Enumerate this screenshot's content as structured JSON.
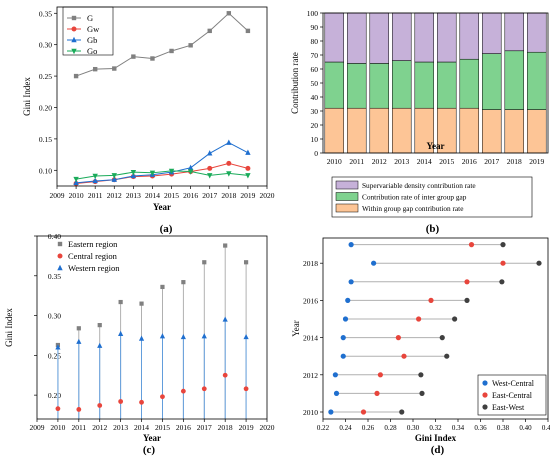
{
  "colors": {
    "gray": "#808080",
    "red": "#e8453c",
    "blue": "#1f6fcf",
    "green": "#1aab5a",
    "dark": "#404040",
    "within": "#fdc596",
    "inter": "#7fd28f",
    "density": "#c6b1d9"
  },
  "chart_data": [
    {
      "panel": "(a)",
      "type": "line",
      "xlabel": "Year",
      "ylabel": "Gini Index",
      "xlim": [
        2009,
        2020
      ],
      "ylim": [
        0.075,
        0.36
      ],
      "xticks": [
        "2009",
        "2010",
        "2011",
        "2012",
        "2013",
        "2014",
        "2015",
        "2016",
        "2017",
        "2018",
        "2019",
        "2020"
      ],
      "yticks": [
        "0.10",
        "0.15",
        "0.20",
        "0.25",
        "0.30",
        "0.35"
      ],
      "x": [
        2010,
        2011,
        2012,
        2013,
        2014,
        2015,
        2016,
        2017,
        2018,
        2019
      ],
      "series": [
        {
          "name": "G",
          "marker": "square",
          "color": "#808080",
          "values": [
            0.25,
            0.261,
            0.262,
            0.281,
            0.278,
            0.29,
            0.299,
            0.322,
            0.35,
            0.322
          ]
        },
        {
          "name": "Gw",
          "marker": "circle",
          "color": "#e8453c",
          "values": [
            0.079,
            0.082,
            0.085,
            0.09,
            0.091,
            0.094,
            0.098,
            0.103,
            0.111,
            0.103
          ]
        },
        {
          "name": "Gb",
          "marker": "triangle",
          "color": "#1f6fcf",
          "values": [
            0.08,
            0.083,
            0.085,
            0.091,
            0.093,
            0.097,
            0.104,
            0.127,
            0.144,
            0.128
          ]
        },
        {
          "name": "Go",
          "marker": "tri-down",
          "color": "#1aab5a",
          "values": [
            0.086,
            0.091,
            0.092,
            0.097,
            0.096,
            0.099,
            0.098,
            0.092,
            0.095,
            0.092
          ]
        }
      ],
      "legend": "top-left"
    },
    {
      "panel": "(b)",
      "type": "bar",
      "stacked": true,
      "xlabel": "Year",
      "ylabel": "Contribution rate",
      "ylim": [
        0,
        100
      ],
      "yticks": [
        "0",
        "10",
        "20",
        "30",
        "40",
        "50",
        "60",
        "70",
        "80",
        "90",
        "100"
      ],
      "categories": [
        "2010",
        "2011",
        "2012",
        "2013",
        "2014",
        "2015",
        "2016",
        "2017",
        "2018",
        "2019"
      ],
      "series": [
        {
          "name": "Within group gap contribution rate",
          "color": "#fdc596",
          "values": [
            32,
            32,
            32,
            32,
            32,
            32,
            32,
            31,
            31,
            31
          ]
        },
        {
          "name": "Contribution rate of inter group gap",
          "color": "#7fd28f",
          "values": [
            33,
            32,
            32,
            34,
            33,
            33,
            35,
            40,
            42,
            41
          ]
        },
        {
          "name": "Supervariable density contribution rate",
          "color": "#c6b1d9",
          "values": [
            35,
            36,
            36,
            34,
            35,
            35,
            33,
            29,
            27,
            28
          ]
        }
      ],
      "legend_order": [
        2,
        1,
        0
      ],
      "legend": "bottom"
    },
    {
      "panel": "(c)",
      "type": "scatter",
      "xlabel": "Year",
      "ylabel": "Gini Index",
      "xlim": [
        2009,
        2020
      ],
      "ylim": [
        0.17,
        0.4
      ],
      "xticks": [
        "2009",
        "2010",
        "2011",
        "2012",
        "2013",
        "2014",
        "2015",
        "2016",
        "2017",
        "2018",
        "2019",
        "2020"
      ],
      "yticks": [
        "0.20",
        "0.25",
        "0.30",
        "0.35",
        "0.40"
      ],
      "x": [
        2010,
        2011,
        2012,
        2013,
        2014,
        2015,
        2016,
        2017,
        2018,
        2019
      ],
      "series": [
        {
          "name": "Eastern region",
          "marker": "square",
          "color": "#808080",
          "values": [
            0.263,
            0.284,
            0.288,
            0.317,
            0.315,
            0.336,
            0.342,
            0.367,
            0.388,
            0.367
          ]
        },
        {
          "name": "Central region",
          "marker": "circle",
          "color": "#e8453c",
          "values": [
            0.183,
            0.182,
            0.187,
            0.192,
            0.191,
            0.198,
            0.205,
            0.208,
            0.225,
            0.208
          ]
        },
        {
          "name": "Western region",
          "marker": "triangle",
          "color": "#1f6fcf",
          "values": [
            0.26,
            0.267,
            0.262,
            0.277,
            0.271,
            0.274,
            0.273,
            0.274,
            0.295,
            0.273
          ]
        }
      ],
      "legend": "top-left"
    },
    {
      "panel": "(d)",
      "type": "dot-plot",
      "xlabel": "Gini Index",
      "ylabel": "Year",
      "xlim": [
        0.22,
        0.42
      ],
      "xticks": [
        "0.22",
        "0.24",
        "0.26",
        "0.28",
        "0.30",
        "0.32",
        "0.34",
        "0.36",
        "0.38",
        "0.40",
        "0.42"
      ],
      "yticks": [
        "2010",
        "2012",
        "2014",
        "2016",
        "2018"
      ],
      "years": [
        2010,
        2011,
        2012,
        2013,
        2014,
        2015,
        2016,
        2017,
        2018,
        2019
      ],
      "series": [
        {
          "name": "West-Central",
          "color": "#1f6fcf",
          "values": [
            0.227,
            0.232,
            0.231,
            0.238,
            0.238,
            0.24,
            0.242,
            0.245,
            0.265,
            0.245
          ]
        },
        {
          "name": "East-Central",
          "color": "#e8453c",
          "values": [
            0.256,
            0.268,
            0.271,
            0.292,
            0.287,
            0.305,
            0.316,
            0.348,
            0.38,
            0.352
          ]
        },
        {
          "name": "East-West",
          "color": "#404040",
          "values": [
            0.29,
            0.308,
            0.307,
            0.33,
            0.326,
            0.337,
            0.348,
            0.379,
            0.412,
            0.38
          ]
        }
      ],
      "legend": "bottom-right"
    }
  ]
}
